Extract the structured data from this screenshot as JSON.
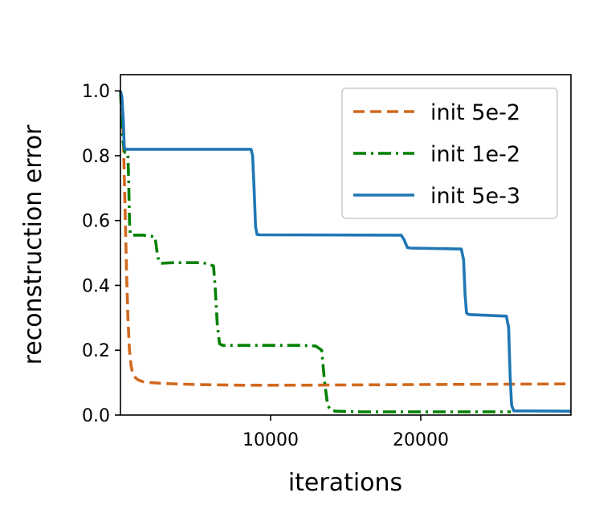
{
  "chart_data": {
    "type": "line",
    "xlabel": "iterations",
    "ylabel": "reconstruction error",
    "xlim": [
      0,
      30000
    ],
    "ylim": [
      0.0,
      1.05
    ],
    "xticks": [
      10000,
      20000
    ],
    "xtick_labels": [
      "10000",
      "20000"
    ],
    "yticks": [
      0.0,
      0.2,
      0.4,
      0.6,
      0.8,
      1.0
    ],
    "ytick_labels": [
      "0.0",
      "0.2",
      "0.4",
      "0.6",
      "0.8",
      "1.0"
    ],
    "grid": false,
    "legend_position": "top-right",
    "series": [
      {
        "name": "init 5e-2",
        "color": "#d2691e",
        "dash": "dashed",
        "x": [
          0,
          100,
          200,
          300,
          400,
          500,
          600,
          700,
          800,
          1000,
          1200,
          1500,
          2000,
          3000,
          5000,
          8000,
          12000,
          16000,
          20000,
          25000,
          30000
        ],
        "y": [
          1.0,
          0.97,
          0.85,
          0.65,
          0.45,
          0.3,
          0.2,
          0.155,
          0.13,
          0.115,
          0.108,
          0.103,
          0.1,
          0.097,
          0.094,
          0.092,
          0.092,
          0.093,
          0.094,
          0.095,
          0.096
        ]
      },
      {
        "name": "init 1e-2",
        "color": "#008000",
        "dash": "dashdot",
        "x": [
          0,
          150,
          300,
          450,
          500,
          550,
          600,
          650,
          700,
          800,
          1500,
          2300,
          2450,
          2550,
          2700,
          3500,
          5500,
          6200,
          6300,
          6450,
          6600,
          6800,
          8000,
          12000,
          13000,
          13400,
          13600,
          13800,
          14000,
          14300,
          16000,
          20000,
          26000
        ],
        "y": [
          1.0,
          0.85,
          0.81,
          0.81,
          0.8,
          0.72,
          0.6,
          0.56,
          0.555,
          0.555,
          0.555,
          0.55,
          0.5,
          0.475,
          0.468,
          0.47,
          0.47,
          0.46,
          0.4,
          0.28,
          0.22,
          0.215,
          0.215,
          0.215,
          0.213,
          0.2,
          0.1,
          0.03,
          0.015,
          0.012,
          0.01,
          0.01,
          0.01
        ]
      },
      {
        "name": "init 5e-3",
        "color": "#1f77b4",
        "dash": "solid",
        "x": [
          0,
          100,
          200,
          250,
          300,
          8700,
          8800,
          8900,
          9000,
          9100,
          9300,
          18700,
          18900,
          19100,
          19300,
          22700,
          22850,
          22950,
          23050,
          23200,
          25700,
          25850,
          25950,
          26050,
          26200,
          30000
        ],
        "y": [
          1.0,
          0.98,
          0.9,
          0.83,
          0.82,
          0.82,
          0.8,
          0.7,
          0.58,
          0.557,
          0.556,
          0.555,
          0.54,
          0.517,
          0.515,
          0.512,
          0.48,
          0.37,
          0.315,
          0.31,
          0.305,
          0.27,
          0.12,
          0.03,
          0.013,
          0.012
        ]
      }
    ]
  }
}
